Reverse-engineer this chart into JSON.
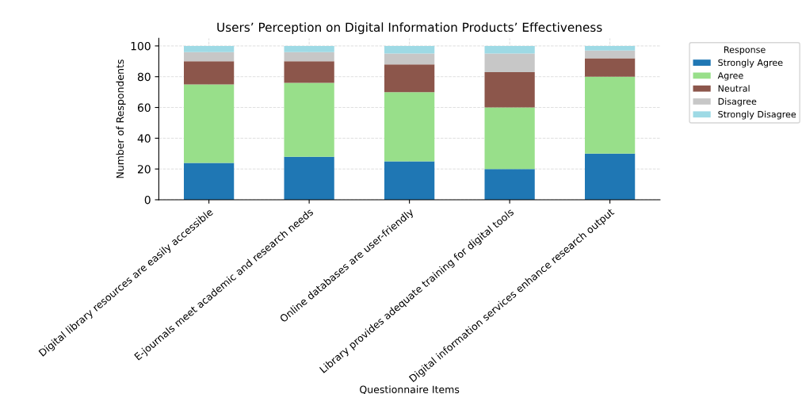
{
  "chart_data": {
    "type": "bar",
    "stacked": true,
    "title": "Users’ Perception on Digital Information Products’ Effectiveness",
    "xlabel": "Questionnaire Items",
    "ylabel": "Number of Respondents",
    "legend_title": "Response",
    "categories": [
      "Digital library resources are easily accessible",
      "E-journals meet academic and research needs",
      "Online databases are user-friendly",
      "Library provides adequate training for digital tools",
      "Digital information services enhance research output"
    ],
    "series": [
      {
        "name": "Strongly Agree",
        "color": "#1f77b4",
        "values": [
          24,
          28,
          25,
          20,
          30
        ]
      },
      {
        "name": "Agree",
        "color": "#98df8a",
        "values": [
          51,
          48,
          45,
          40,
          50
        ]
      },
      {
        "name": "Neutral",
        "color": "#8c564b",
        "values": [
          15,
          14,
          18,
          23,
          12
        ]
      },
      {
        "name": "Disagree",
        "color": "#c7c7c7",
        "values": [
          6,
          6,
          7,
          12,
          5
        ]
      },
      {
        "name": "Strongly Disagree",
        "color": "#9edae5",
        "values": [
          4,
          4,
          5,
          5,
          3
        ]
      }
    ],
    "ylim": [
      0,
      105
    ],
    "yticks": [
      0,
      20,
      40,
      60,
      80,
      100
    ],
    "grid": true,
    "legend": "top right"
  }
}
